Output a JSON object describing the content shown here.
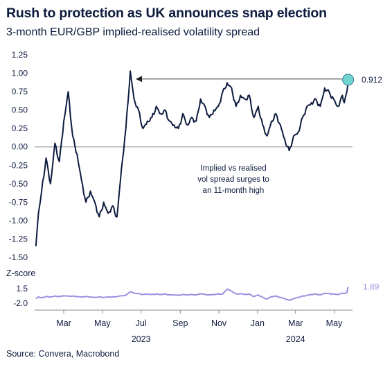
{
  "title": "Rush to protection as UK announces snap election",
  "subtitle": "3-month EUR/GBP implied-realised volatility spread",
  "source": "Source: Convera, Macrobond",
  "colors": {
    "line": "#0d1b3e",
    "zscore": "#9b8fe0",
    "highlight": "#6fd6cf",
    "axis": "#888888"
  },
  "chart_data": [
    {
      "type": "line",
      "title": "",
      "ylabel": "",
      "ylim": [
        -1.5,
        1.25
      ],
      "yticks": [
        "1.25",
        "1.00",
        "0.75",
        "0.50",
        "0.25",
        "0.00",
        "-0.25",
        "-0.50",
        "-0.75",
        "-1.00",
        "-1.25",
        "-1.50"
      ],
      "x_dates": [
        "2023-01-16",
        "2023-01-20",
        "2023-01-25",
        "2023-02-01",
        "2023-02-08",
        "2023-02-15",
        "2023-02-22",
        "2023-03-01",
        "2023-03-08",
        "2023-03-15",
        "2023-03-22",
        "2023-03-29",
        "2023-04-05",
        "2023-04-12",
        "2023-04-19",
        "2023-04-26",
        "2023-05-03",
        "2023-05-10",
        "2023-05-17",
        "2023-05-24",
        "2023-05-31",
        "2023-06-07",
        "2023-06-14",
        "2023-06-20",
        "2023-06-27",
        "2023-07-04",
        "2023-07-11",
        "2023-07-18",
        "2023-07-25",
        "2023-08-01",
        "2023-08-08",
        "2023-08-15",
        "2023-08-22",
        "2023-08-29",
        "2023-09-05",
        "2023-09-12",
        "2023-09-19",
        "2023-09-26",
        "2023-10-03",
        "2023-10-10",
        "2023-10-17",
        "2023-10-24",
        "2023-10-31",
        "2023-11-07",
        "2023-11-14",
        "2023-11-21",
        "2023-11-28",
        "2023-12-05",
        "2023-12-12",
        "2023-12-19",
        "2023-12-26",
        "2024-01-02",
        "2024-01-09",
        "2024-01-16",
        "2024-01-23",
        "2024-01-30",
        "2024-02-06",
        "2024-02-13",
        "2024-02-20",
        "2024-02-27",
        "2024-03-05",
        "2024-03-12",
        "2024-03-19",
        "2024-03-26",
        "2024-04-02",
        "2024-04-09",
        "2024-04-16",
        "2024-04-23",
        "2024-04-30",
        "2024-05-07",
        "2024-05-14",
        "2024-05-17",
        "2024-05-21",
        "2024-05-23"
      ],
      "series": [
        {
          "values": [
            -1.35,
            -0.9,
            -0.6,
            -0.15,
            -0.5,
            0.05,
            -0.2,
            0.35,
            0.75,
            0.15,
            -0.1,
            -0.45,
            -0.75,
            -0.6,
            -0.75,
            -0.95,
            -0.75,
            -0.9,
            -0.8,
            -0.95,
            -0.3,
            0.25,
            1.03,
            0.65,
            0.5,
            0.25,
            0.35,
            0.4,
            0.55,
            0.45,
            0.5,
            0.35,
            0.3,
            0.25,
            0.45,
            0.3,
            0.4,
            0.35,
            0.65,
            0.55,
            0.4,
            0.5,
            0.55,
            0.75,
            0.87,
            0.8,
            0.55,
            0.7,
            0.65,
            0.7,
            0.4,
            0.55,
            0.3,
            0.15,
            0.35,
            0.45,
            0.3,
            0.1,
            -0.05,
            0.15,
            0.2,
            0.4,
            0.55,
            0.6,
            0.65,
            0.55,
            0.8,
            0.75,
            0.65,
            0.55,
            0.7,
            0.6,
            0.75,
            0.912
          ]
        }
      ],
      "end_label": "0.912",
      "annotation": "Implied vs realised vol spread surges to an 11-month high",
      "annotation_lines": [
        "Implied vs realised",
        "vol spread surges to",
        "an 11-month high"
      ]
    },
    {
      "type": "line",
      "title": "Z-score",
      "yticks": [
        "1.5",
        "-2.0"
      ],
      "ylim": [
        -2.0,
        1.5
      ],
      "series": [
        {
          "values": [
            -0.9,
            -0.5,
            -0.7,
            -0.4,
            -0.5,
            -0.3,
            -0.4,
            -0.2,
            -0.3,
            -0.3,
            -0.4,
            -0.5,
            -0.4,
            -0.5,
            -0.6,
            -0.5,
            -0.6,
            -0.5,
            -0.5,
            -0.4,
            -0.2,
            -0.1,
            0.8,
            0.4,
            0.3,
            0.1,
            0.2,
            0.1,
            0.2,
            0.1,
            0.2,
            0.0,
            0.0,
            -0.1,
            0.1,
            0.0,
            0.1,
            0.0,
            0.3,
            0.1,
            0.0,
            0.1,
            0.2,
            0.2,
            1.4,
            0.9,
            0.2,
            0.3,
            0.1,
            0.2,
            -0.4,
            0.0,
            -0.6,
            -1.0,
            -0.4,
            -0.3,
            -0.6,
            -0.9,
            -1.3,
            -0.9,
            -0.6,
            -0.3,
            -0.1,
            0.1,
            0.2,
            0.0,
            0.4,
            0.3,
            0.2,
            0.1,
            0.4,
            0.3,
            0.5,
            1.89
          ]
        }
      ],
      "end_label": "1.89"
    }
  ],
  "x_axis": {
    "months": [
      "Mar",
      "May",
      "Jul",
      "Sep",
      "Nov",
      "Jan",
      "Mar",
      "May"
    ],
    "month_dates": [
      "2023-03-01",
      "2023-05-01",
      "2023-07-01",
      "2023-09-01",
      "2023-11-01",
      "2024-01-01",
      "2024-03-01",
      "2024-05-01"
    ],
    "years": [
      {
        "label": "2023",
        "date": "2023-07-01"
      },
      {
        "label": "2024",
        "date": "2024-03-01"
      }
    ]
  }
}
